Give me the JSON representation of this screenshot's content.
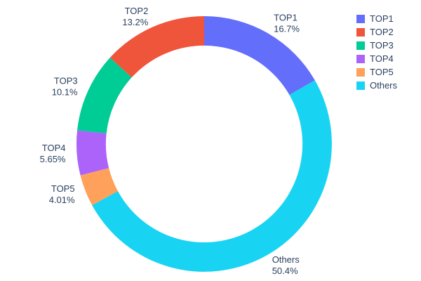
{
  "chart_data": {
    "type": "pie",
    "subtype": "donut",
    "labels": [
      "TOP1",
      "TOP2",
      "TOP3",
      "TOP4",
      "TOP5",
      "Others"
    ],
    "values": [
      16.7,
      13.2,
      10.1,
      5.65,
      4.01,
      50.4
    ],
    "percent_labels": [
      "16.7%",
      "13.2%",
      "10.1%",
      "5.65%",
      "4.01%",
      "50.4%"
    ],
    "colors": [
      "#636EFA",
      "#EF553B",
      "#00CC96",
      "#AB63FA",
      "#FFA15A",
      "#19D3F3"
    ],
    "hole": 0.77,
    "title": "",
    "legend": {
      "position": "right",
      "items": [
        "TOP1",
        "TOP2",
        "TOP3",
        "TOP4",
        "TOP5",
        "Others"
      ]
    },
    "text_color": "#2a3f5f",
    "background": "#ffffff"
  }
}
